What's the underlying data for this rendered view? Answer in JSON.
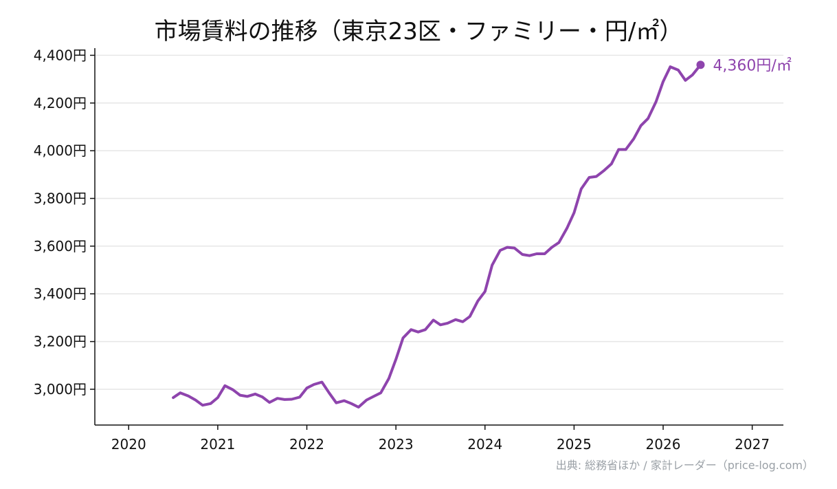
{
  "colors": {
    "series": "#8e44ad",
    "grid": "#e6e6e6",
    "axis": "#111111",
    "source": "#9aa0a6"
  },
  "chart_data": {
    "type": "line",
    "title": "市場賃料の推移（東京23区・ファミリー・円/㎡）",
    "source": "出典: 総務省ほか / 家計レーダー（price-log.com）",
    "xlim": [
      2019.62,
      2027.35
    ],
    "ylim": [
      2850,
      4430
    ],
    "x_ticks": [
      2020,
      2021,
      2022,
      2023,
      2024,
      2025,
      2026,
      2027
    ],
    "x_tick_labels": [
      "2020",
      "2021",
      "2022",
      "2023",
      "2024",
      "2025",
      "2026",
      "2027"
    ],
    "y_ticks": [
      3000,
      3200,
      3400,
      3600,
      3800,
      4000,
      4200,
      4400
    ],
    "y_tick_labels": [
      "3,000円",
      "3,200円",
      "3,400円",
      "3,600円",
      "3,800円",
      "4,000円",
      "4,200円",
      "4,400円"
    ],
    "grid": "horizontal",
    "end_label": "4,360円/㎡",
    "series": [
      {
        "x": [
          2020.5,
          2020.58,
          2020.67,
          2020.75,
          2020.83,
          2020.92,
          2021.0,
          2021.08,
          2021.17,
          2021.25,
          2021.33,
          2021.42,
          2021.5,
          2021.58,
          2021.67,
          2021.75,
          2021.83,
          2021.92,
          2022.0,
          2022.08,
          2022.17,
          2022.25,
          2022.33,
          2022.42,
          2022.5,
          2022.58,
          2022.67,
          2022.75,
          2022.83,
          2022.92,
          2023.0,
          2023.08,
          2023.17,
          2023.25,
          2023.33,
          2023.42,
          2023.5,
          2023.58,
          2023.67,
          2023.75,
          2023.83,
          2023.92,
          2024.0,
          2024.08,
          2024.17,
          2024.25,
          2024.33,
          2024.42,
          2024.5,
          2024.58,
          2024.67,
          2024.75,
          2024.83,
          2024.92,
          2025.0,
          2025.08,
          2025.17,
          2025.25,
          2025.33,
          2025.42,
          2025.5,
          2025.58,
          2025.67,
          2025.75,
          2025.83,
          2025.92,
          2026.0,
          2026.08,
          2026.17,
          2026.25,
          2026.33,
          2026.42
        ],
        "values": [
          2965,
          2985,
          2972,
          2955,
          2933,
          2940,
          2965,
          3015,
          2998,
          2975,
          2970,
          2980,
          2968,
          2945,
          2962,
          2957,
          2958,
          2967,
          3005,
          3020,
          3030,
          2985,
          2943,
          2952,
          2940,
          2925,
          2955,
          2970,
          2985,
          3045,
          3125,
          3215,
          3250,
          3240,
          3250,
          3290,
          3270,
          3277,
          3292,
          3283,
          3305,
          3370,
          3410,
          3520,
          3582,
          3595,
          3592,
          3565,
          3560,
          3568,
          3568,
          3595,
          3615,
          3675,
          3740,
          3840,
          3888,
          3892,
          3915,
          3945,
          4005,
          4005,
          4050,
          4105,
          4135,
          4205,
          4290,
          4352,
          4338,
          4295,
          4318,
          4360
        ]
      }
    ]
  }
}
